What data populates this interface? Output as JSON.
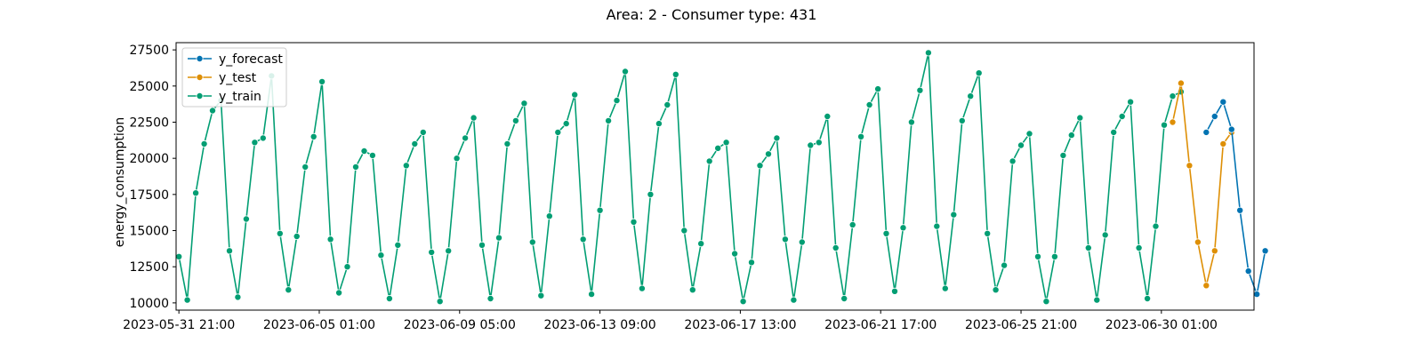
{
  "chart_data": {
    "type": "line",
    "title": "Area: 2 - Consumer type: 431",
    "xlabel": "",
    "ylabel": "energy_consumption",
    "x_start": "2023-05-31 21:00",
    "x_step_hours": 6,
    "xlim": [
      "2023-05-31 19:00",
      "2023-07-02 19:00"
    ],
    "ylim": [
      9500,
      28000
    ],
    "xticks": [
      "2023-05-31 21:00",
      "2023-06-05 01:00",
      "2023-06-09 05:00",
      "2023-06-13 09:00",
      "2023-06-17 13:00",
      "2023-06-21 17:00",
      "2023-06-25 21:00",
      "2023-06-30 01:00"
    ],
    "yticks": [
      10000,
      12500,
      15000,
      17500,
      20000,
      22500,
      25000,
      27500
    ],
    "grid": false,
    "legend": "top-left",
    "series": [
      {
        "name": "y_forecast",
        "color": "#0173b2",
        "start_index": 122,
        "values": [
          21800,
          22900,
          23900,
          22000,
          16400,
          12200,
          10600,
          13600
        ]
      },
      {
        "name": "y_test",
        "color": "#de8f05",
        "start_index": 118,
        "values": [
          22500,
          25200,
          19500,
          14200,
          11200,
          13600,
          21000,
          21800
        ]
      },
      {
        "name": "y_train",
        "color": "#029e73",
        "start_index": 0,
        "values": [
          13200,
          10200,
          17600,
          21000,
          23300,
          24000,
          13600,
          10400,
          15800,
          21100,
          21400,
          25700,
          14800,
          10900,
          14600,
          19400,
          21500,
          25300,
          14400,
          10700,
          12500,
          19400,
          20500,
          20200,
          13300,
          10300,
          14000,
          19500,
          21000,
          21800,
          13500,
          10100,
          13600,
          20000,
          21400,
          22800,
          14000,
          10300,
          14500,
          21000,
          22600,
          23800,
          14200,
          10500,
          16000,
          21800,
          22400,
          24400,
          14400,
          10600,
          16400,
          22600,
          24000,
          26000,
          15600,
          11000,
          17500,
          22400,
          23700,
          25800,
          15000,
          10900,
          14100,
          19800,
          20700,
          21100,
          13400,
          10100,
          12800,
          19500,
          20300,
          21400,
          14400,
          10200,
          14200,
          20900,
          21100,
          22900,
          13800,
          10300,
          15400,
          21500,
          23700,
          24800,
          14800,
          10800,
          15200,
          22500,
          24700,
          27300,
          15300,
          11000,
          16100,
          22600,
          24300,
          25900,
          14800,
          10900,
          12600,
          19800,
          20900,
          21700,
          13200,
          10100,
          13200,
          20200,
          21600,
          22800,
          13800,
          10200,
          14700,
          21800,
          22900,
          23900,
          13800,
          10300,
          15300,
          22300,
          24300,
          24600
        ]
      }
    ]
  }
}
